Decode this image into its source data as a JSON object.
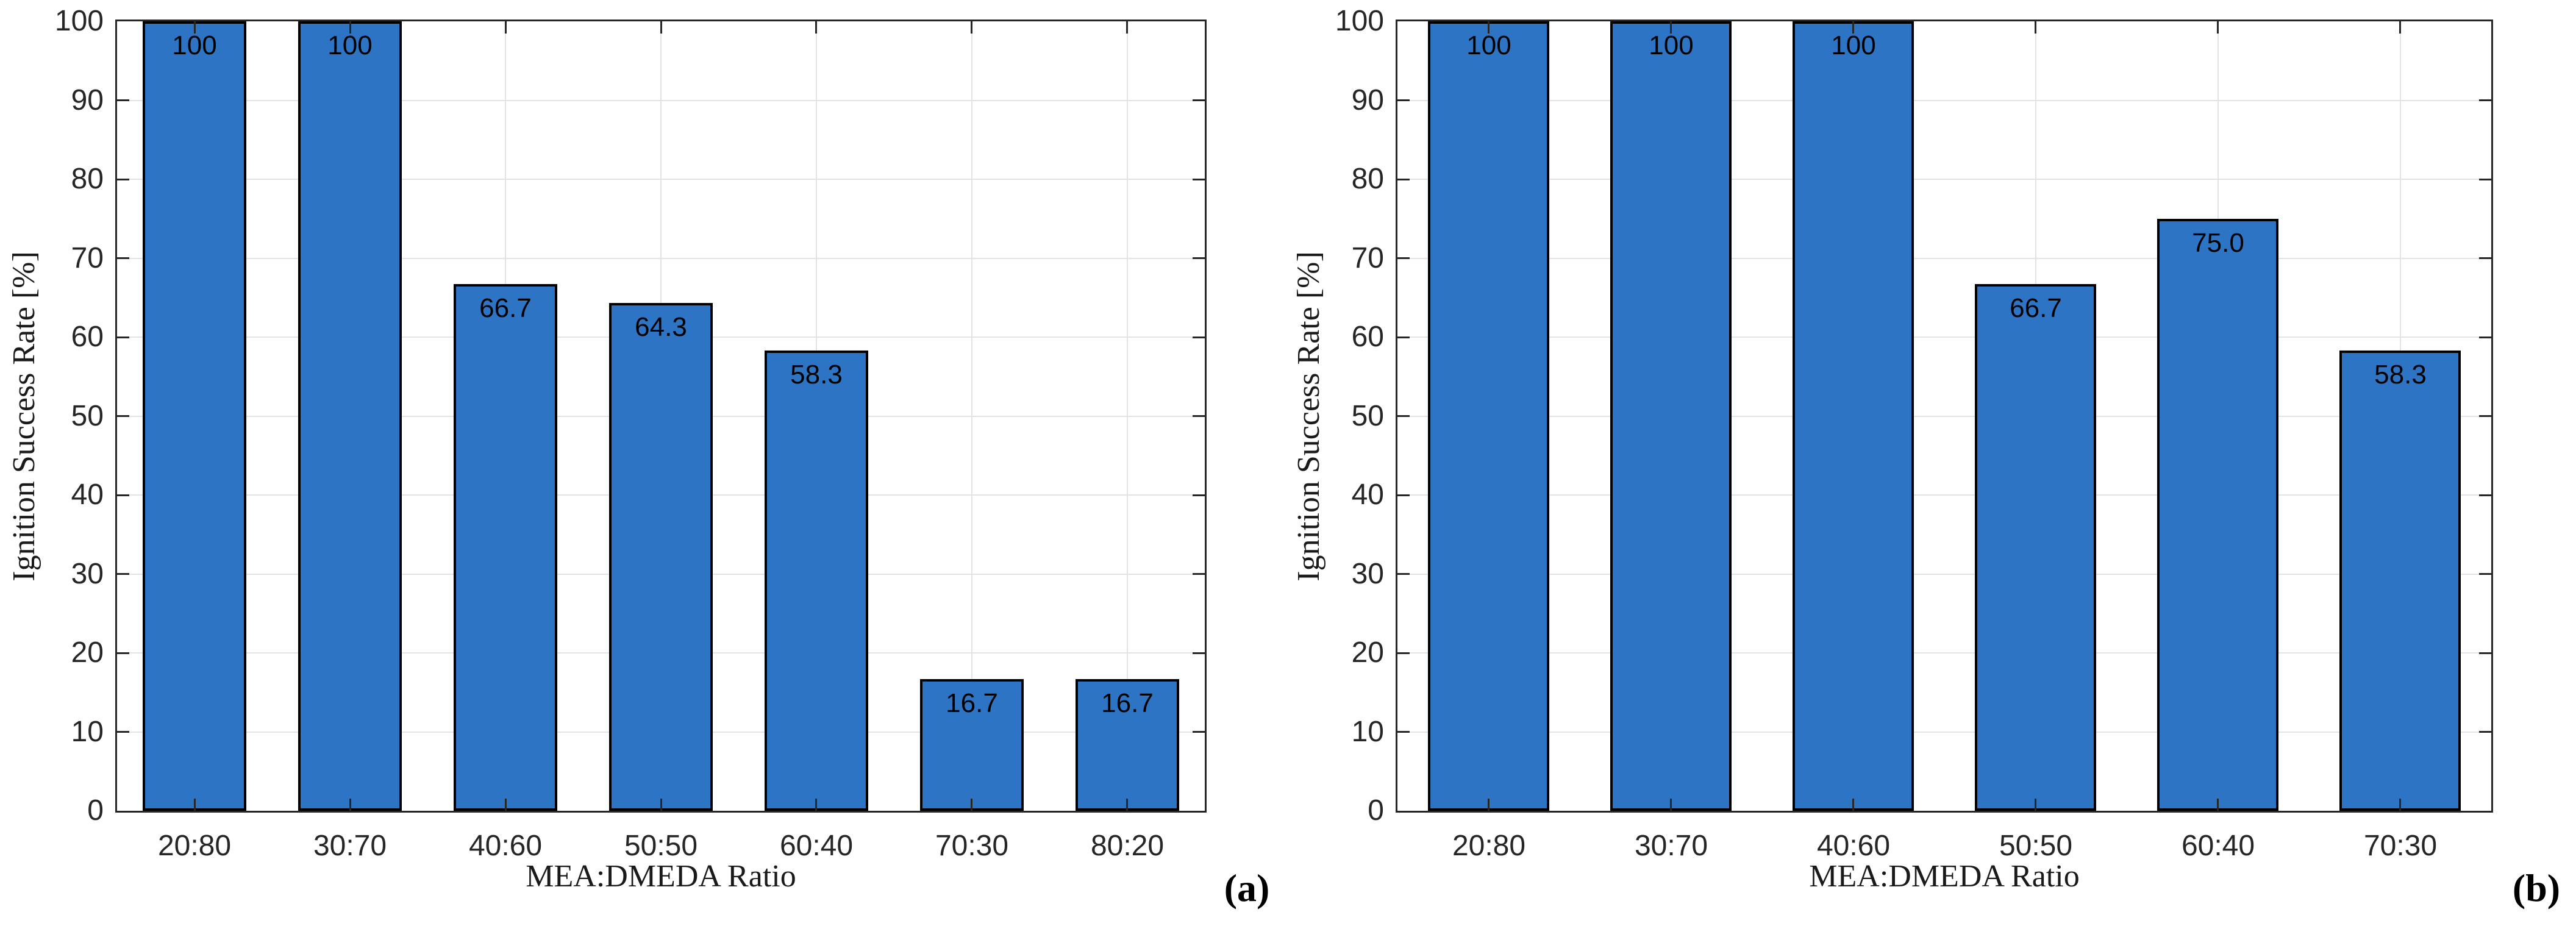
{
  "figure": {
    "background": "#FFFFFF",
    "axis_color": "#262626",
    "grid_color": "#E3E3E3",
    "bar_fill": "#2E74C4",
    "bar_edge": "#000000",
    "value_label_color": "#000000",
    "tick_label_color": "#262626"
  },
  "chart_data": [
    {
      "type": "bar",
      "panel_label": "(a)",
      "title": "",
      "xlabel": "MEA:DMEDA Ratio",
      "ylabel": "Ignition Success Rate [%]",
      "categories": [
        "20:80",
        "30:70",
        "40:60",
        "50:50",
        "60:40",
        "70:30",
        "80:20"
      ],
      "values": [
        100,
        100,
        66.7,
        64.3,
        58.3,
        16.7,
        16.7
      ],
      "value_labels": [
        "100",
        "100",
        "66.7",
        "64.3",
        "58.3",
        "16.7",
        "16.7"
      ],
      "ylim": [
        0,
        100
      ],
      "y_ticks": [
        0,
        10,
        20,
        30,
        40,
        50,
        60,
        70,
        80,
        90,
        100
      ],
      "grid": true,
      "legend_position": "none"
    },
    {
      "type": "bar",
      "panel_label": "(b)",
      "title": "",
      "xlabel": "MEA:DMEDA Ratio",
      "ylabel": "Ignition Success Rate [%]",
      "categories": [
        "20:80",
        "30:70",
        "40:60",
        "50:50",
        "60:40",
        "70:30"
      ],
      "values": [
        100,
        100,
        100,
        66.7,
        75.0,
        58.3
      ],
      "value_labels": [
        "100",
        "100",
        "100",
        "66.7",
        "75.0",
        "58.3"
      ],
      "ylim": [
        0,
        100
      ],
      "y_ticks": [
        0,
        10,
        20,
        30,
        40,
        50,
        60,
        70,
        80,
        90,
        100
      ],
      "grid": true,
      "legend_position": "none"
    }
  ]
}
